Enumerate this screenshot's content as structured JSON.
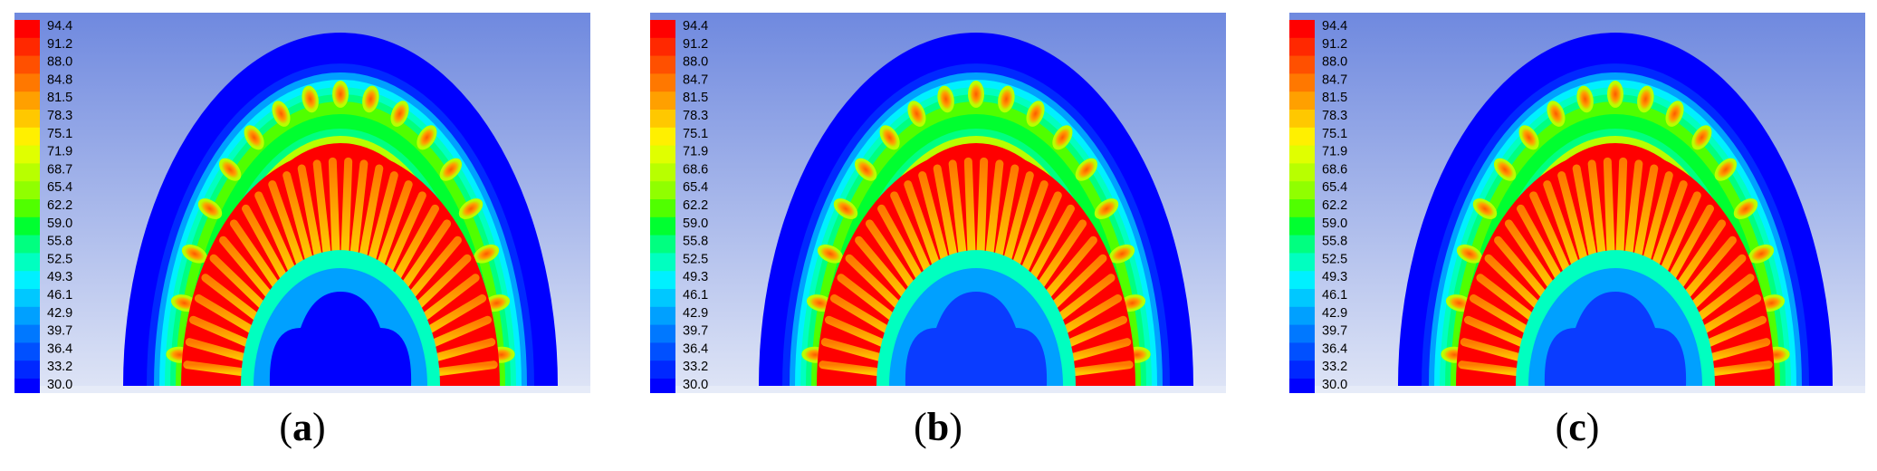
{
  "panels": [
    {
      "caption_open": "(",
      "caption_letter": "a",
      "caption_close": ")",
      "legend_ticks": [
        "94.4",
        "91.2",
        "88.0",
        "84.8",
        "81.5",
        "78.3",
        "75.1",
        "71.9",
        "68.7",
        "65.4",
        "62.2",
        "59.0",
        "55.8",
        "52.5",
        "49.3",
        "46.1",
        "42.9",
        "39.7",
        "36.4",
        "33.2",
        "30.0"
      ]
    },
    {
      "caption_open": "(",
      "caption_letter": "b",
      "caption_close": ")",
      "legend_ticks": [
        "94.4",
        "91.2",
        "88.0",
        "84.7",
        "81.5",
        "78.3",
        "75.1",
        "71.9",
        "68.6",
        "65.4",
        "62.2",
        "59.0",
        "55.8",
        "52.5",
        "49.3",
        "46.1",
        "42.9",
        "39.7",
        "36.4",
        "33.2",
        "30.0"
      ]
    },
    {
      "caption_open": "(",
      "caption_letter": "c",
      "caption_close": ")",
      "legend_ticks": [
        "94.4",
        "91.2",
        "88.0",
        "84.7",
        "81.5",
        "78.3",
        "75.1",
        "71.9",
        "68.6",
        "65.4",
        "62.2",
        "59.0",
        "55.8",
        "52.5",
        "49.3",
        "46.1",
        "42.9",
        "39.7",
        "36.4",
        "33.2",
        "30.0"
      ]
    }
  ],
  "legend_colors": [
    "#ff0000",
    "#ff2800",
    "#ff5000",
    "#ff7800",
    "#ffa000",
    "#ffc800",
    "#fff000",
    "#e0ff00",
    "#b8ff00",
    "#90ff00",
    "#50ff00",
    "#00ff30",
    "#00ff80",
    "#00ffc0",
    "#00f0ff",
    "#00c8ff",
    "#00a0ff",
    "#0078ff",
    "#0050ff",
    "#0028ff",
    "#0000ff"
  ]
}
